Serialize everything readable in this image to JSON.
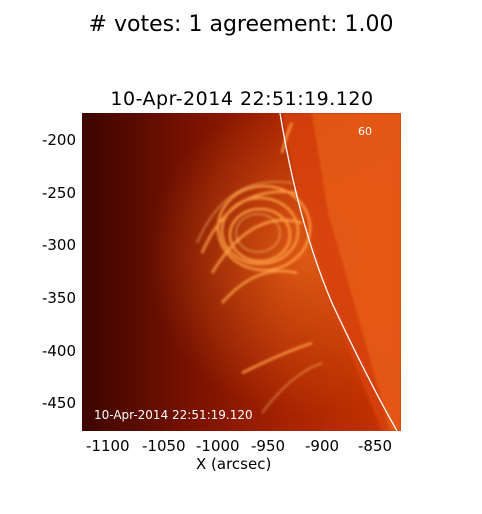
{
  "figure_title": "# votes: 1 agreement: 1.00",
  "image": {
    "title": "10-Apr-2014  22:51:19.120",
    "inset_timestamp": "10-Apr-2014  22:51:19.120",
    "wavelength_label": "60",
    "x_axis_label": "X (arcsec)",
    "y_axis_label": "",
    "y_ticks": [
      "-200",
      "-250",
      "-300",
      "-350",
      "-400",
      "-450"
    ],
    "x_ticks": [
      "-1100",
      "-1050",
      "-1000",
      "-950",
      "-900",
      "-850"
    ],
    "colors": {
      "limb_line": "#ffffff",
      "dark": "#3a0400",
      "bright": "#ff9a40"
    }
  }
}
